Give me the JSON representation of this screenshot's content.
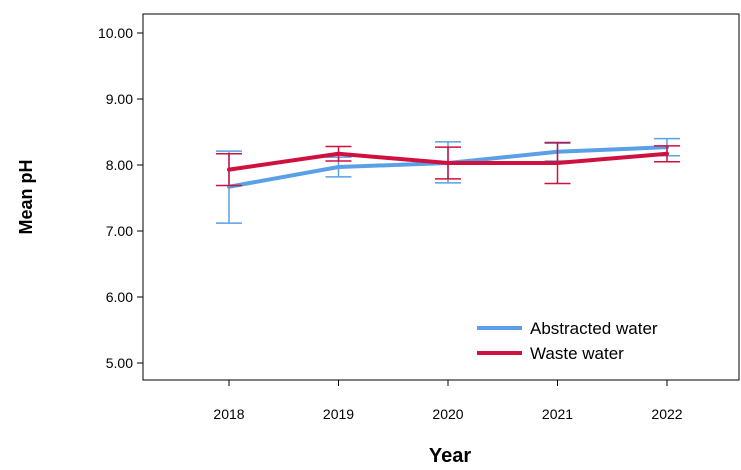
{
  "chart_data": {
    "type": "line",
    "title": "",
    "xlabel": "Year",
    "ylabel": "Mean pH",
    "categories": [
      "2018",
      "2019",
      "2020",
      "2021",
      "2022"
    ],
    "ylim": [
      5.0,
      10.0
    ],
    "yticks": [
      "5.00",
      "6.00",
      "7.00",
      "8.00",
      "9.00",
      "10.00"
    ],
    "grid": false,
    "legend_position": "bottom-right",
    "series": [
      {
        "name": "Abstracted water",
        "color": "#5aa0e6",
        "values": [
          7.67,
          7.97,
          8.03,
          8.2,
          8.27
        ],
        "error_low": [
          7.12,
          7.82,
          7.73,
          8.06,
          8.14
        ],
        "error_high": [
          8.21,
          8.12,
          8.35,
          8.33,
          8.4
        ]
      },
      {
        "name": "Waste water",
        "color": "#d0103f",
        "values": [
          7.93,
          8.17,
          8.03,
          8.03,
          8.17
        ],
        "error_low": [
          7.69,
          8.06,
          7.79,
          7.72,
          8.05
        ],
        "error_high": [
          8.17,
          8.28,
          8.27,
          8.34,
          8.29
        ]
      }
    ]
  }
}
